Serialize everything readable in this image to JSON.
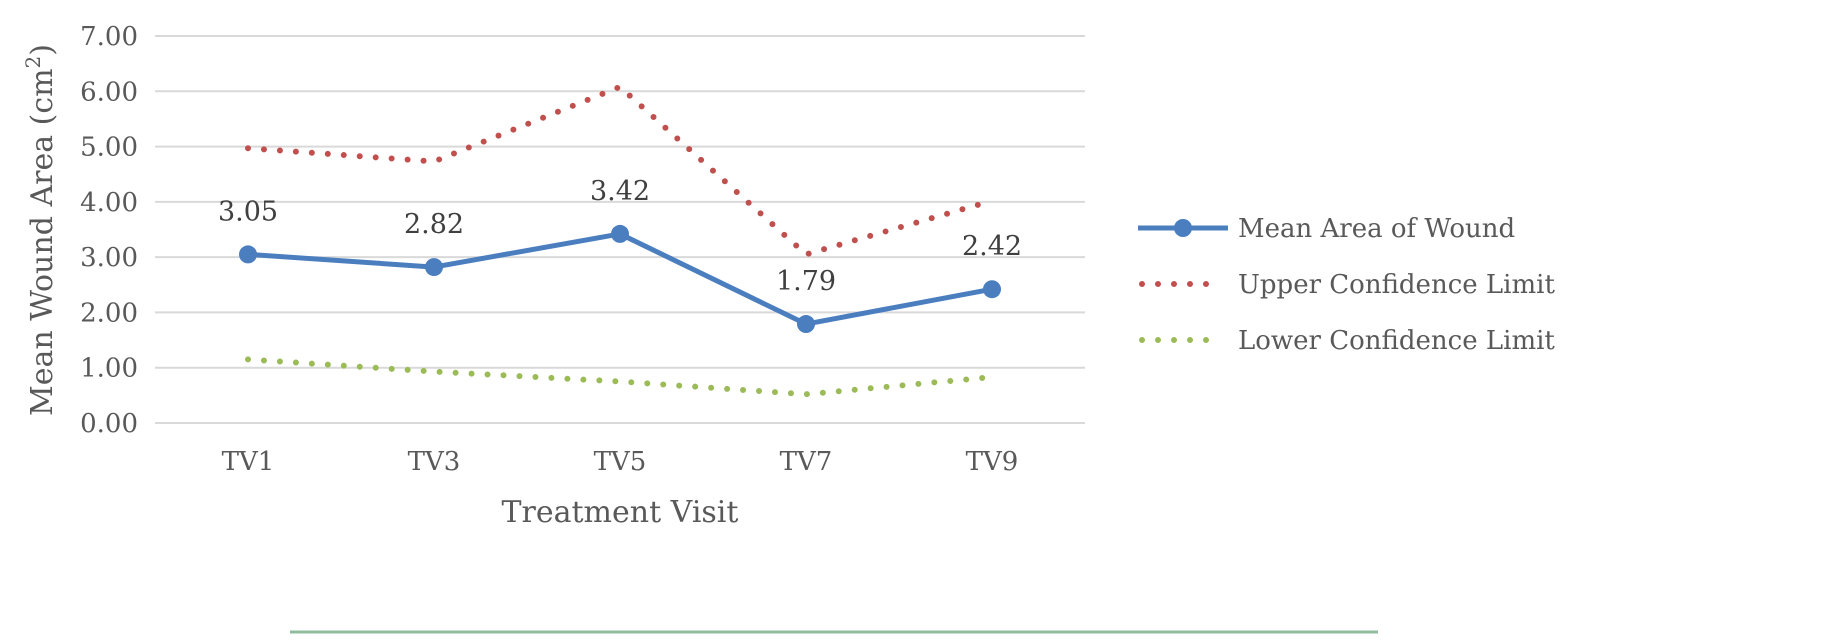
{
  "chart_data": {
    "type": "line",
    "title": "",
    "xlabel": "Treatment Visit",
    "ylabel": "Mean Wound Area (cm²)",
    "ylabel_base": "Mean Wound Area (cm",
    "ylabel_sup": "2",
    "ylabel_close": ")",
    "categories": [
      "TV1",
      "TV3",
      "TV5",
      "TV7",
      "TV9"
    ],
    "ylim": [
      0,
      7
    ],
    "yticks": [
      "0.00",
      "1.00",
      "2.00",
      "3.00",
      "4.00",
      "5.00",
      "6.00",
      "7.00"
    ],
    "grid": true,
    "legend_position": "right",
    "series": [
      {
        "name": "Mean Area of Wound",
        "values": [
          3.05,
          2.82,
          3.42,
          1.79,
          2.42
        ],
        "labels": [
          "3.05",
          "2.82",
          "3.42",
          "1.79",
          "2.42"
        ],
        "color": "#4a7ebf",
        "style": "solid-markers"
      },
      {
        "name": "Upper Confidence Limit",
        "values": [
          4.97,
          4.73,
          6.08,
          3.05,
          4.02
        ],
        "color": "#c0504d",
        "style": "dotted"
      },
      {
        "name": "Lower Confidence Limit",
        "values": [
          1.15,
          0.93,
          0.75,
          0.52,
          0.83
        ],
        "color": "#9bbb59",
        "style": "dotted"
      }
    ]
  }
}
